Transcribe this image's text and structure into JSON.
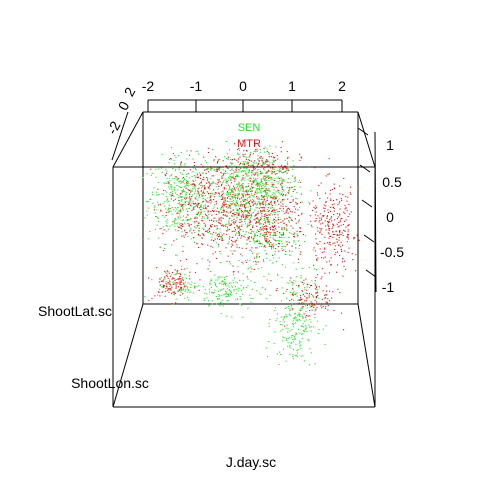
{
  "chart_data": {
    "type": "scatter",
    "projection": "3d",
    "axes": {
      "top": {
        "ticks": [
          "-2",
          "-1",
          "0",
          "1",
          "2"
        ]
      },
      "right": {
        "ticks": [
          "1",
          "0.5",
          "0",
          "-0.5",
          "-1"
        ]
      },
      "left": {
        "ticks": [
          "-2",
          "0",
          "2"
        ]
      }
    },
    "labels": {
      "lat": "ShootLat.sc",
      "lon": "ShootLon.sc",
      "day": "J.day.sc"
    },
    "legend": {
      "placement": "top-center"
    },
    "series": [
      {
        "name": "SEN",
        "color": "#22e622",
        "clusters": [
          {
            "x": -1.25,
            "y": 0.25,
            "sx": 0.35,
            "sy": 0.3,
            "n": 420
          },
          {
            "x": -0.05,
            "y": 0.3,
            "sx": 0.35,
            "sy": 0.35,
            "n": 520
          },
          {
            "x": 0.55,
            "y": 0.45,
            "sx": 0.3,
            "sy": 0.22,
            "n": 260
          },
          {
            "x": -0.35,
            "y": -1.05,
            "sx": 0.3,
            "sy": 0.15,
            "n": 170
          },
          {
            "x": 1.05,
            "y": -1.45,
            "sx": 0.22,
            "sy": 0.35,
            "n": 260
          },
          {
            "x": -1.35,
            "y": -0.95,
            "sx": 0.2,
            "sy": 0.12,
            "n": 90
          },
          {
            "x": 0.6,
            "y": -0.3,
            "sx": 0.3,
            "sy": 0.2,
            "n": 170
          }
        ]
      },
      {
        "name": "MTR",
        "color": "#ee1111",
        "clusters": [
          {
            "x": -0.8,
            "y": 0.15,
            "sx": 0.45,
            "sy": 0.35,
            "n": 420
          },
          {
            "x": 0.4,
            "y": 0.05,
            "sx": 0.45,
            "sy": 0.35,
            "n": 520
          },
          {
            "x": 1.85,
            "y": -0.15,
            "sx": 0.25,
            "sy": 0.3,
            "n": 260
          },
          {
            "x": -1.45,
            "y": -0.95,
            "sx": 0.2,
            "sy": 0.12,
            "n": 110
          },
          {
            "x": 1.4,
            "y": -1.15,
            "sx": 0.25,
            "sy": 0.15,
            "n": 120
          },
          {
            "x": 0.3,
            "y": 0.75,
            "sx": 0.45,
            "sy": 0.15,
            "n": 140
          }
        ]
      }
    ]
  }
}
